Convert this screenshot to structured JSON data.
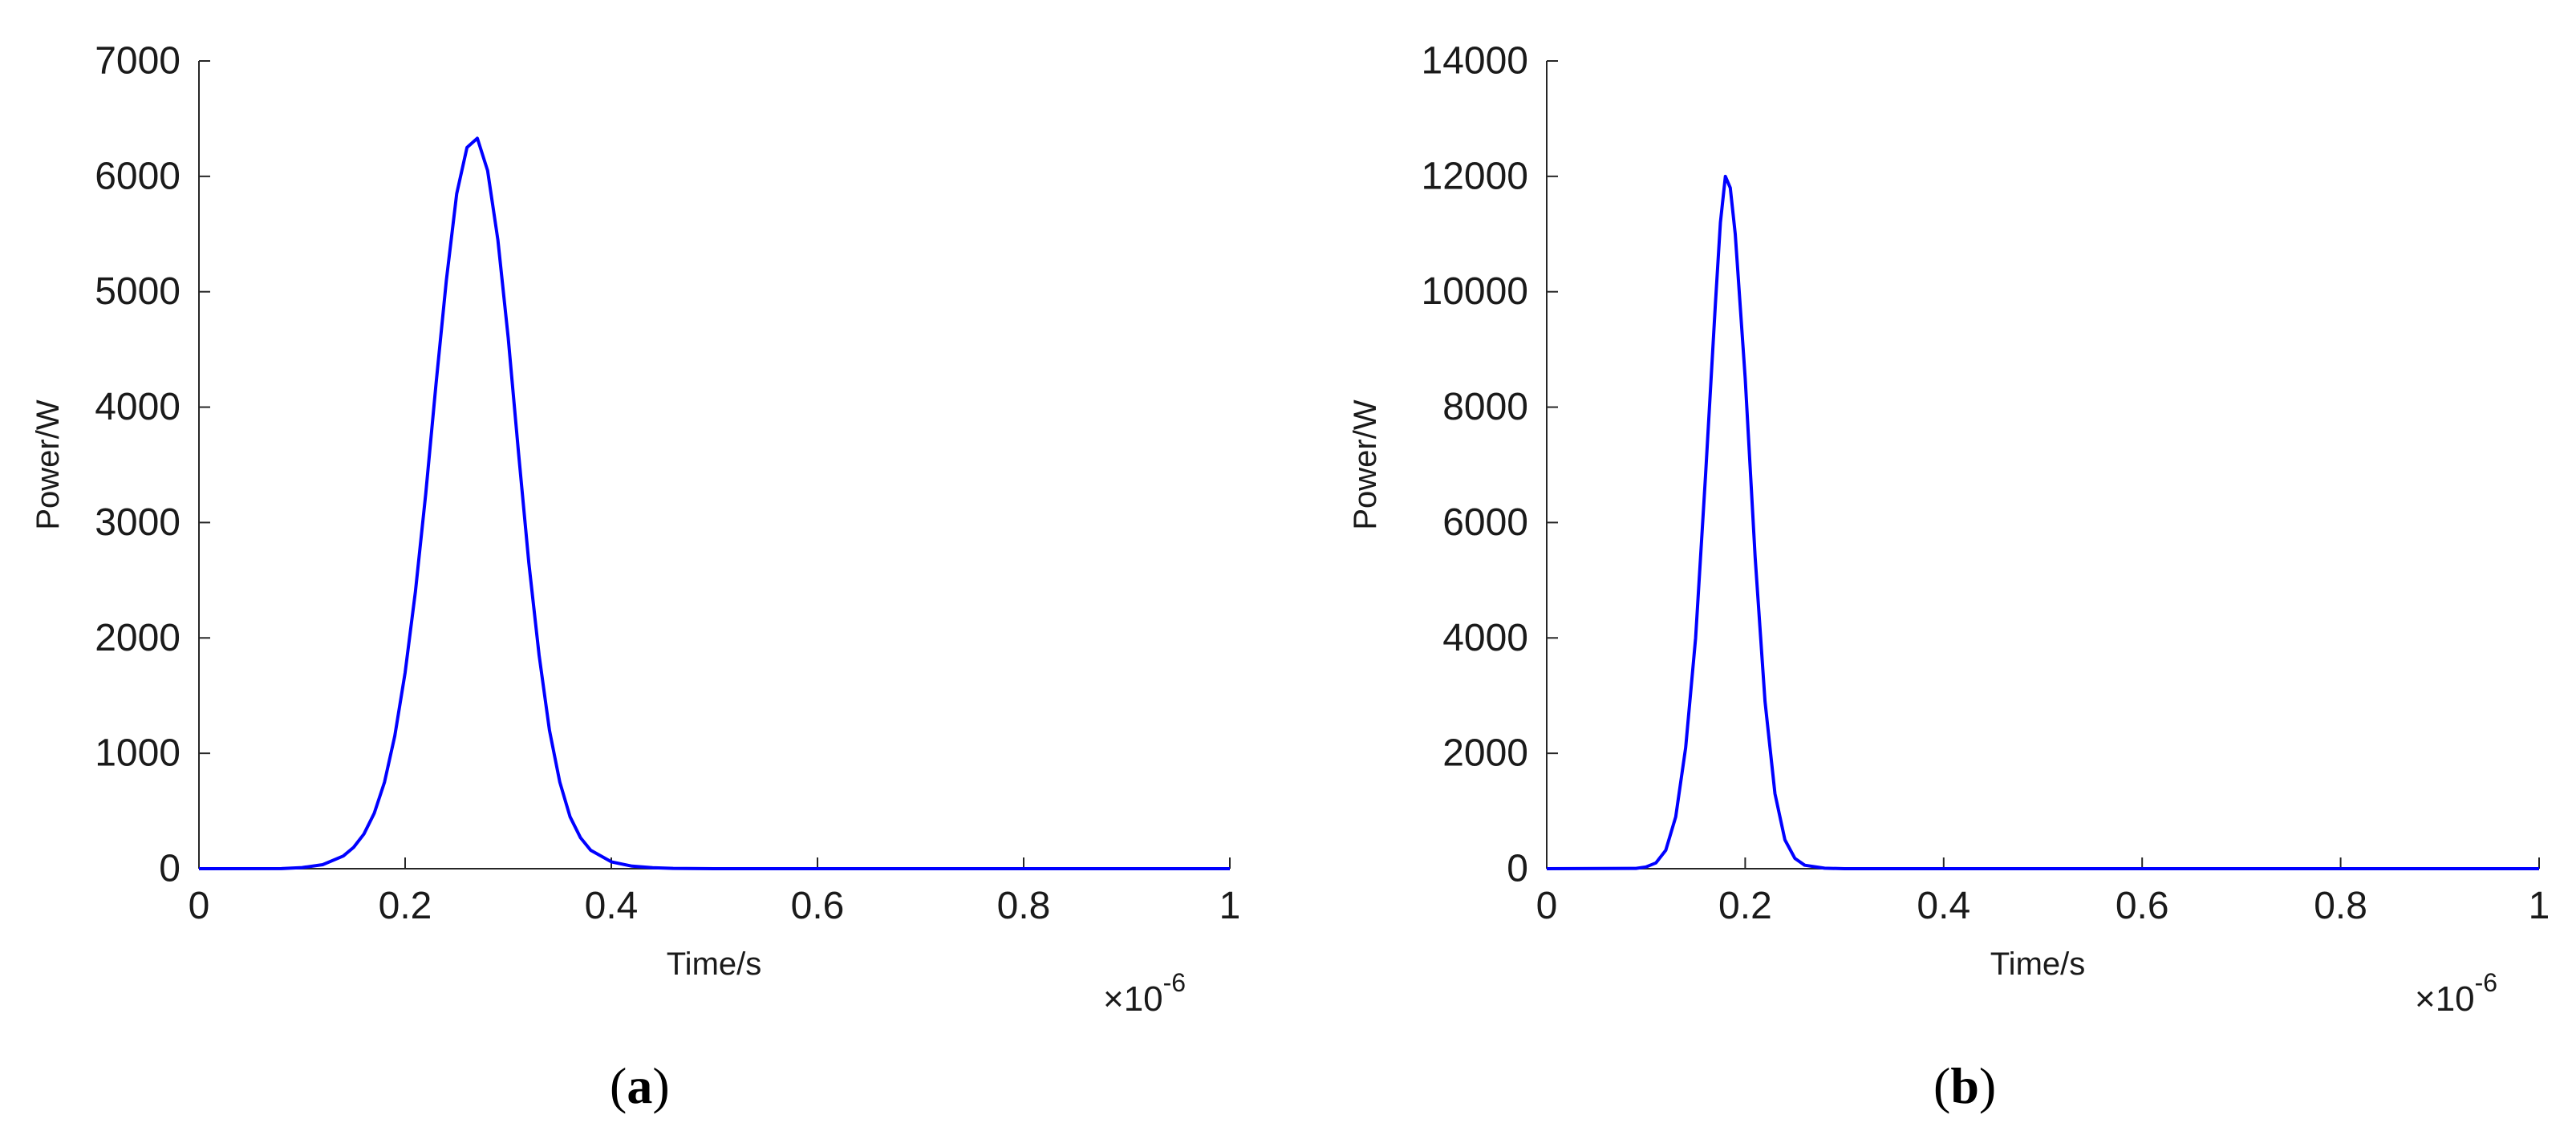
{
  "panels": [
    {
      "panel_label": "a",
      "exponent": {
        "base": "×10",
        "power": "-6"
      }
    },
    {
      "panel_label": "b",
      "exponent": {
        "base": "×10",
        "power": "-6"
      }
    }
  ],
  "chart_data": [
    {
      "type": "line",
      "title": "",
      "xlabel": "Time/s",
      "ylabel": "Power/W",
      "xlim": [
        0,
        1
      ],
      "ylim": [
        0,
        7000
      ],
      "xticks": [
        0,
        0.2,
        0.4,
        0.6,
        0.8,
        1
      ],
      "xtick_labels": [
        "0",
        "0.2",
        "0.4",
        "0.6",
        "0.8",
        "1"
      ],
      "yticks": [
        0,
        1000,
        2000,
        3000,
        4000,
        5000,
        6000,
        7000
      ],
      "ytick_labels": [
        "0",
        "1000",
        "2000",
        "3000",
        "4000",
        "5000",
        "6000",
        "7000"
      ],
      "grid": false,
      "series": [
        {
          "color": "#0000ff",
          "x": [
            0,
            0.08,
            0.1,
            0.12,
            0.14,
            0.15,
            0.16,
            0.17,
            0.18,
            0.19,
            0.2,
            0.21,
            0.22,
            0.23,
            0.24,
            0.25,
            0.26,
            0.27,
            0.28,
            0.29,
            0.3,
            0.31,
            0.32,
            0.33,
            0.34,
            0.35,
            0.36,
            0.37,
            0.38,
            0.4,
            0.42,
            0.44,
            0.46,
            0.5,
            0.6,
            0.7,
            0.8,
            0.9,
            1.0
          ],
          "y": [
            0,
            1,
            10,
            35,
            110,
            185,
            300,
            480,
            750,
            1150,
            1700,
            2400,
            3250,
            4200,
            5100,
            5850,
            6250,
            6330,
            6050,
            5450,
            4600,
            3600,
            2650,
            1850,
            1200,
            750,
            450,
            270,
            160,
            60,
            22,
            8,
            3,
            0,
            0,
            0,
            0,
            0,
            0
          ]
        }
      ]
    },
    {
      "type": "line",
      "title": "",
      "xlabel": "Time/s",
      "ylabel": "Power/W",
      "xlim": [
        0,
        1
      ],
      "ylim": [
        0,
        14000
      ],
      "xticks": [
        0,
        0.2,
        0.4,
        0.6,
        0.8,
        1
      ],
      "xtick_labels": [
        "0",
        "0.2",
        "0.4",
        "0.6",
        "0.8",
        "1"
      ],
      "yticks": [
        0,
        2000,
        4000,
        6000,
        8000,
        10000,
        12000,
        14000
      ],
      "ytick_labels": [
        "0",
        "2000",
        "4000",
        "6000",
        "8000",
        "10000",
        "12000",
        "14000"
      ],
      "grid": false,
      "series": [
        {
          "color": "#0000ff",
          "x": [
            0,
            0.09,
            0.1,
            0.11,
            0.12,
            0.13,
            0.14,
            0.15,
            0.16,
            0.17,
            0.175,
            0.18,
            0.185,
            0.19,
            0.2,
            0.21,
            0.22,
            0.23,
            0.24,
            0.25,
            0.26,
            0.28,
            0.3,
            0.4,
            0.5,
            0.6,
            0.7,
            0.8,
            0.9,
            1.0
          ],
          "y": [
            0,
            5,
            30,
            100,
            320,
            900,
            2100,
            4000,
            6800,
            9800,
            11200,
            12000,
            11800,
            11000,
            8500,
            5400,
            2900,
            1300,
            500,
            180,
            60,
            8,
            0,
            0,
            0,
            0,
            0,
            0,
            0,
            0
          ]
        }
      ]
    }
  ]
}
